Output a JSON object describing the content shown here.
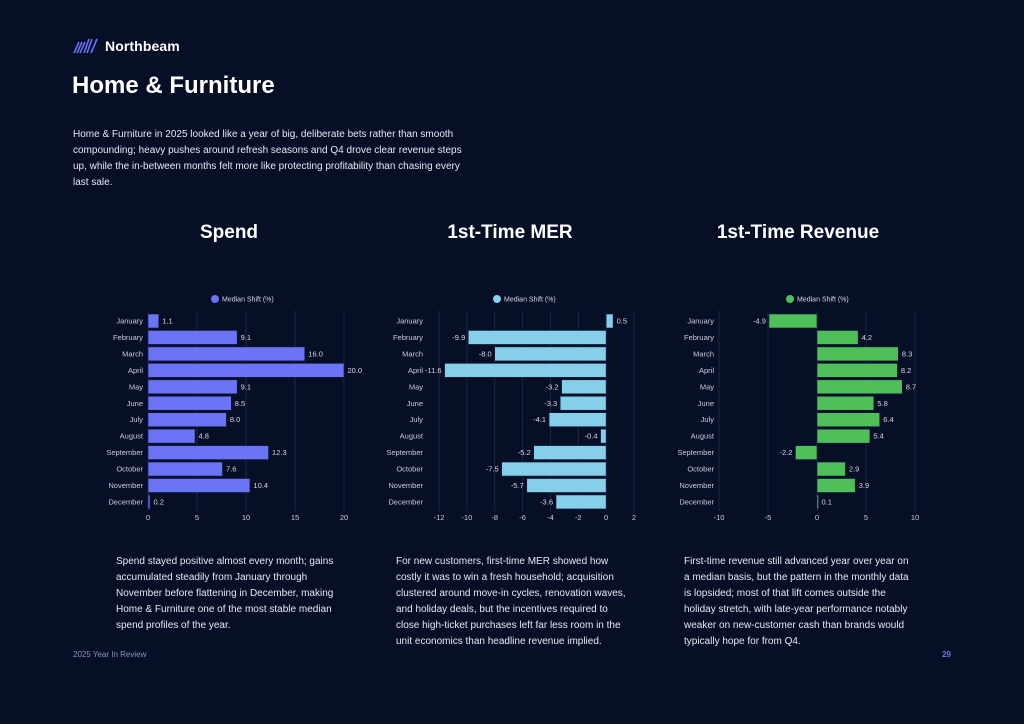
{
  "brand": {
    "name": "Northbeam",
    "logo_icon": "northbeam-stripes-icon",
    "color": "#6b74f5"
  },
  "page": {
    "title": "Home & Furniture",
    "intro": "Home & Furniture in 2025 looked like a year of big, deliberate bets rather than smooth compounding; heavy pushes around refresh seasons and Q4 drove clear revenue steps up, while the in-between months felt more like protecting profitability than chasing every last sale.",
    "footer_left": "2025 Year In Review",
    "page_number": "29"
  },
  "descriptions": [
    "Spend stayed positive almost every month; gains accumulated steadily from January through November before flattening in December, making Home & Furniture one of the most stable median spend profiles of the year.",
    "For new customers, first-time MER showed how costly it was to win a fresh household; acquisition clustered around move-in cycles, renovation waves, and holiday deals, but the incentives required to close high-ticket purchases left far less room in the unit economics than headline revenue implied.",
    "First-time revenue still advanced year over year on a median basis, but the pattern in the monthly data is lopsided; most of that lift comes outside the holiday stretch, with late-year performance notably weaker on new-customer cash than brands would typically hope for from Q4."
  ],
  "chart_data": [
    {
      "type": "bar",
      "orientation": "horizontal",
      "title": "Spend",
      "categories": [
        "January",
        "February",
        "March",
        "April",
        "May",
        "June",
        "July",
        "August",
        "September",
        "October",
        "November",
        "December"
      ],
      "series": [
        {
          "name": "Median Shift (%)",
          "values": [
            1.1,
            9.1,
            16.0,
            20.0,
            9.1,
            8.5,
            8.0,
            4.8,
            12.3,
            7.6,
            10.4,
            0.2
          ],
          "color": "#6b74f5"
        }
      ],
      "xlim": [
        0,
        20
      ],
      "xticks": [
        0,
        5,
        10,
        15,
        20
      ],
      "legend": "top-center",
      "grid": true
    },
    {
      "type": "bar",
      "orientation": "horizontal",
      "title": "1st-Time MER",
      "categories": [
        "January",
        "February",
        "March",
        "April",
        "May",
        "June",
        "July",
        "August",
        "September",
        "October",
        "November",
        "December"
      ],
      "series": [
        {
          "name": "Median Shift (%)",
          "values": [
            0.5,
            -9.9,
            -8.0,
            -11.6,
            -3.2,
            -3.3,
            -4.1,
            -0.4,
            -5.2,
            -7.5,
            -5.7,
            -3.6
          ],
          "color": "#86cfe9"
        }
      ],
      "xlim": [
        -12,
        2
      ],
      "xticks": [
        -12,
        -10,
        -8,
        -6,
        -4,
        -2,
        0,
        2
      ],
      "legend": "top-center",
      "grid": true
    },
    {
      "type": "bar",
      "orientation": "horizontal",
      "title": "1st-Time Revenue",
      "categories": [
        "January",
        "February",
        "March",
        "April",
        "May",
        "June",
        "July",
        "August",
        "September",
        "October",
        "November",
        "December"
      ],
      "series": [
        {
          "name": "Median Shift (%)",
          "values": [
            -4.9,
            4.2,
            8.3,
            8.2,
            8.7,
            5.8,
            6.4,
            5.4,
            -2.2,
            2.9,
            3.9,
            0.1
          ],
          "color": "#4fbf57"
        }
      ],
      "xlim": [
        -10,
        10
      ],
      "xticks": [
        -10,
        -5,
        0,
        5,
        10
      ],
      "legend": "top-center",
      "grid": true
    }
  ]
}
